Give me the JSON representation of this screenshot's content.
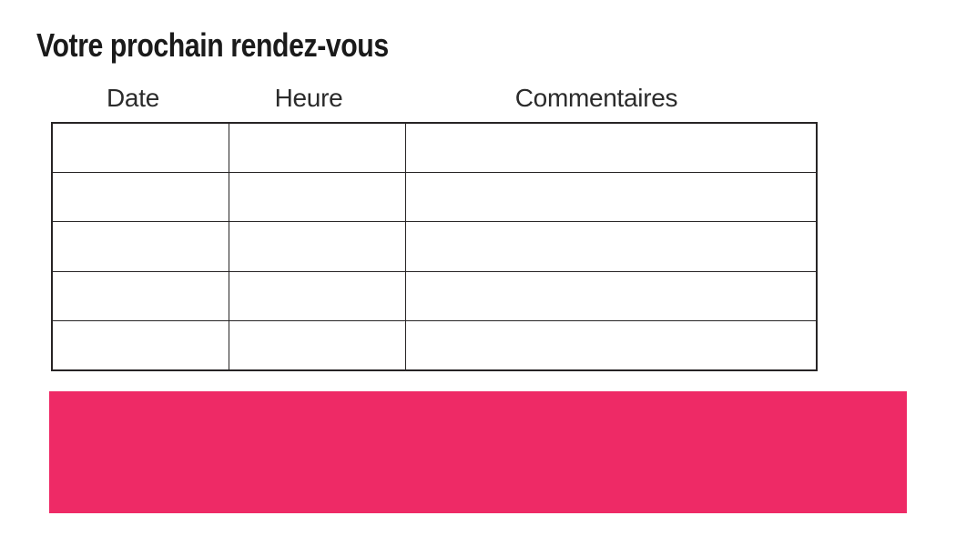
{
  "slide": {
    "title": "Votre prochain rendez-vous",
    "background_color": "#ffffff"
  },
  "appointments_table": {
    "columns": [
      "Date",
      "Heure",
      "Commentaires"
    ],
    "rows": [
      [
        "",
        "",
        ""
      ],
      [
        "",
        "",
        ""
      ],
      [
        "",
        "",
        ""
      ],
      [
        "",
        "",
        ""
      ],
      [
        "",
        "",
        ""
      ]
    ],
    "border_color": "#272425"
  },
  "accent_bar": {
    "color": "#ee2a66"
  }
}
